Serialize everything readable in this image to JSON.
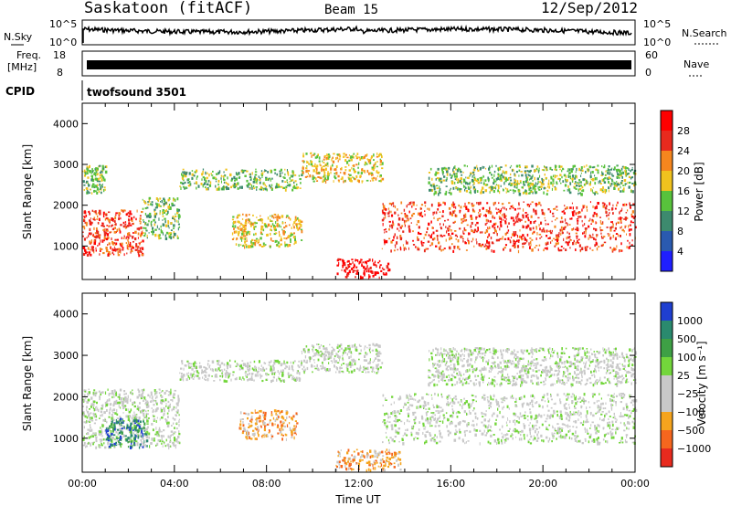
{
  "header": {
    "station": "Saskatoon (fitACF)",
    "beam": "Beam 15",
    "date": "12/Sep/2012"
  },
  "noise_panel": {
    "left_label": "N.Sky",
    "right_label": "N.Search",
    "left_ticks": [
      "10^5",
      "10^0"
    ],
    "right_ticks": [
      "10^5",
      "10^0"
    ]
  },
  "freq_panel": {
    "left_label_line1": "Freq.",
    "left_label_line2": "[MHz]",
    "right_label": "Nave",
    "left_ticks": [
      "18",
      "8"
    ],
    "right_ticks": [
      "60",
      "0"
    ]
  },
  "cpid_panel": {
    "label": "CPID",
    "program": "twofsound 3501"
  },
  "chart_data": [
    {
      "type": "heatmap",
      "name": "power",
      "ylabel": "Slant Range [km]",
      "ylim": [
        180,
        4500
      ],
      "yticks": [
        "1000",
        "2000",
        "3000",
        "4000"
      ],
      "xlim_hours": [
        0,
        24
      ],
      "colorbar_label": "Power [dB]",
      "colorbar_ticks": [
        "4",
        "8",
        "12",
        "16",
        "20",
        "24",
        "28"
      ],
      "colors": [
        "#1f1fff",
        "#2a5ab0",
        "#3d8a6e",
        "#58c23c",
        "#f0c21e",
        "#f5861e",
        "#e82a1e",
        "#ff0000"
      ],
      "regions": [
        {
          "t0": 0.0,
          "t1": 2.6,
          "r0": 800,
          "r1": 1900,
          "level": 6
        },
        {
          "t0": 0.0,
          "t1": 1.0,
          "r0": 2300,
          "r1": 3000,
          "level": 3
        },
        {
          "t0": 2.6,
          "t1": 4.2,
          "r0": 1200,
          "r1": 2200,
          "level": 3
        },
        {
          "t0": 4.2,
          "t1": 9.5,
          "r0": 2400,
          "r1": 2900,
          "level": 3
        },
        {
          "t0": 6.5,
          "t1": 9.5,
          "r0": 1000,
          "r1": 1800,
          "level": 4
        },
        {
          "t0": 9.5,
          "t1": 13.0,
          "r0": 2600,
          "r1": 3300,
          "level": 4
        },
        {
          "t0": 11.0,
          "t1": 13.3,
          "r0": 250,
          "r1": 700,
          "level": 7
        },
        {
          "t0": 13.0,
          "t1": 24.0,
          "r0": 900,
          "r1": 2100,
          "level": 6
        },
        {
          "t0": 15.0,
          "t1": 24.0,
          "r0": 2300,
          "r1": 3000,
          "level": 3
        }
      ]
    },
    {
      "type": "heatmap",
      "name": "velocity",
      "ylabel": "Slant Range [km]",
      "ylim": [
        180,
        4500
      ],
      "yticks": [
        "1000",
        "2000",
        "3000",
        "4000"
      ],
      "xlim_hours": [
        0,
        24
      ],
      "xticks": [
        "00:00",
        "04:00",
        "08:00",
        "12:00",
        "16:00",
        "20:00",
        "00:00"
      ],
      "xlabel": "Time UT",
      "colorbar_label": "Velocity [m s⁻¹]",
      "colorbar_ticks": [
        "1000",
        "500",
        "100",
        "25",
        "−25",
        "−100",
        "−500",
        "−1000"
      ],
      "colors": [
        "#1f3fd0",
        "#2a8a6e",
        "#3ea045",
        "#73d63b",
        "#c8c8c8",
        "#c8c8c8",
        "#f5a41e",
        "#f5661e",
        "#e82a1e"
      ],
      "regions": [
        {
          "t0": 0.0,
          "t1": 4.2,
          "r0": 800,
          "r1": 2200,
          "level": 4
        },
        {
          "t0": 1.0,
          "t1": 2.8,
          "r0": 800,
          "r1": 1500,
          "level": 1
        },
        {
          "t0": 4.2,
          "t1": 9.5,
          "r0": 2400,
          "r1": 2900,
          "level": 4
        },
        {
          "t0": 6.8,
          "t1": 9.3,
          "r0": 1000,
          "r1": 1700,
          "level": 6
        },
        {
          "t0": 9.5,
          "t1": 13.0,
          "r0": 2600,
          "r1": 3300,
          "level": 4
        },
        {
          "t0": 11.0,
          "t1": 13.8,
          "r0": 250,
          "r1": 750,
          "level": 6
        },
        {
          "t0": 13.0,
          "t1": 24.0,
          "r0": 900,
          "r1": 2100,
          "level": 4
        },
        {
          "t0": 15.0,
          "t1": 24.0,
          "r0": 2300,
          "r1": 3200,
          "level": 4
        }
      ]
    }
  ]
}
